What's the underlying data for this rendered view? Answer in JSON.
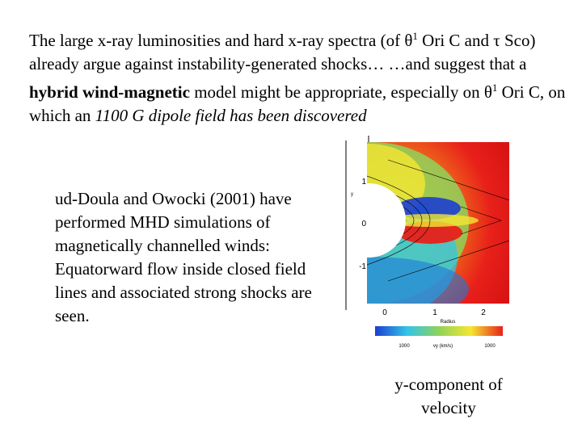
{
  "intro": {
    "line1_part1": "The large x-ray luminosities and hard x-ray spectra (of ",
    "theta_symbol": "θ",
    "superscript_1": "1",
    "line1_part2": " Ori C and ",
    "tau_symbol": "τ",
    "line1_part3": " Sco) already argue against instability-generated shocks… …and suggest that a ",
    "bold_phrase": "hybrid wind-magnetic",
    "line3_part2": " model might be appropriate, especially on ",
    "theta_symbol_2": "θ",
    "superscript_1b": "1",
    "line4_part2": " Ori C, on which an ",
    "italic_phrase": "1100 G dipole field has been discovered"
  },
  "caption": "ud-Doula and Owocki (2001) have performed MHD simulations of magnetically channelled winds: Equatorward flow inside closed field lines and associated strong shocks are seen.",
  "figure_label": "y-component of velocity",
  "plot": {
    "y_axis_label": "y",
    "y_ticks": [
      "1",
      "0",
      "-1"
    ],
    "x_ticks": [
      "0",
      "1",
      "2"
    ],
    "x_axis_label": "Radius",
    "colorbar_min": "1000",
    "colorbar_max": "1000",
    "colorbar_label": "vy (km/s)",
    "colors": {
      "red": "#e8201a",
      "orange": "#f08a1c",
      "yellow": "#f5e632",
      "green": "#8fd35a",
      "cyan": "#33c4e8",
      "blue": "#1c3ed0"
    }
  }
}
